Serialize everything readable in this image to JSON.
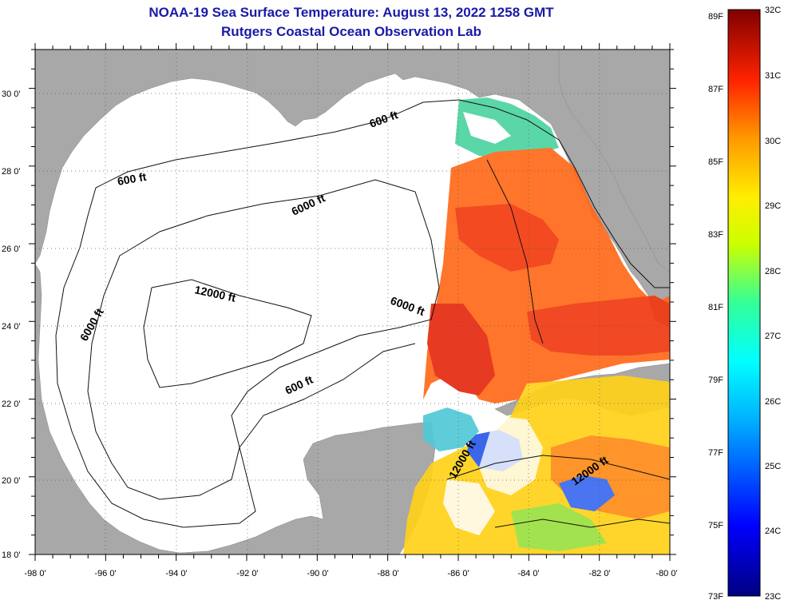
{
  "header": {
    "title": "NOAA-19 Sea Surface Temperature:  August 13, 2022 1258 GMT",
    "subtitle": "Rutgers Coastal Ocean Observation Lab"
  },
  "map": {
    "lon_labels": [
      "-98 0'",
      "-96 0'",
      "-94 0'",
      "-92 0'",
      "-90 0'",
      "-88 0'",
      "-86 0'",
      "-84 0'",
      "-82 0'",
      "-80 0'"
    ],
    "lat_labels": [
      "30 0'",
      "28 0'",
      "26 0'",
      "24 0'",
      "22 0'",
      "20 0'",
      "18 0'"
    ],
    "lon_range": [
      -98,
      -80
    ],
    "lat_range": [
      18,
      31
    ],
    "contour_labels": [
      {
        "text": "600 ft"
      },
      {
        "text": "600 ft"
      },
      {
        "text": "6000 ft"
      },
      {
        "text": "12000 ft"
      },
      {
        "text": "6000 ft"
      },
      {
        "text": "6000 ft"
      },
      {
        "text": "600 ft"
      },
      {
        "text": "12000 ft"
      },
      {
        "text": "12000 ft"
      }
    ],
    "colors": {
      "land": "#a8a8a8",
      "water": "#ffffff",
      "grid": "#555555"
    }
  },
  "colorbar": {
    "f_labels": [
      "89F",
      "87F",
      "85F",
      "83F",
      "81F",
      "79F",
      "77F",
      "75F",
      "73F"
    ],
    "c_labels": [
      "32C",
      "31C",
      "30C",
      "29C",
      "28C",
      "27C",
      "26C",
      "25C",
      "24C",
      "23C"
    ],
    "range_c": [
      23,
      32
    ]
  }
}
